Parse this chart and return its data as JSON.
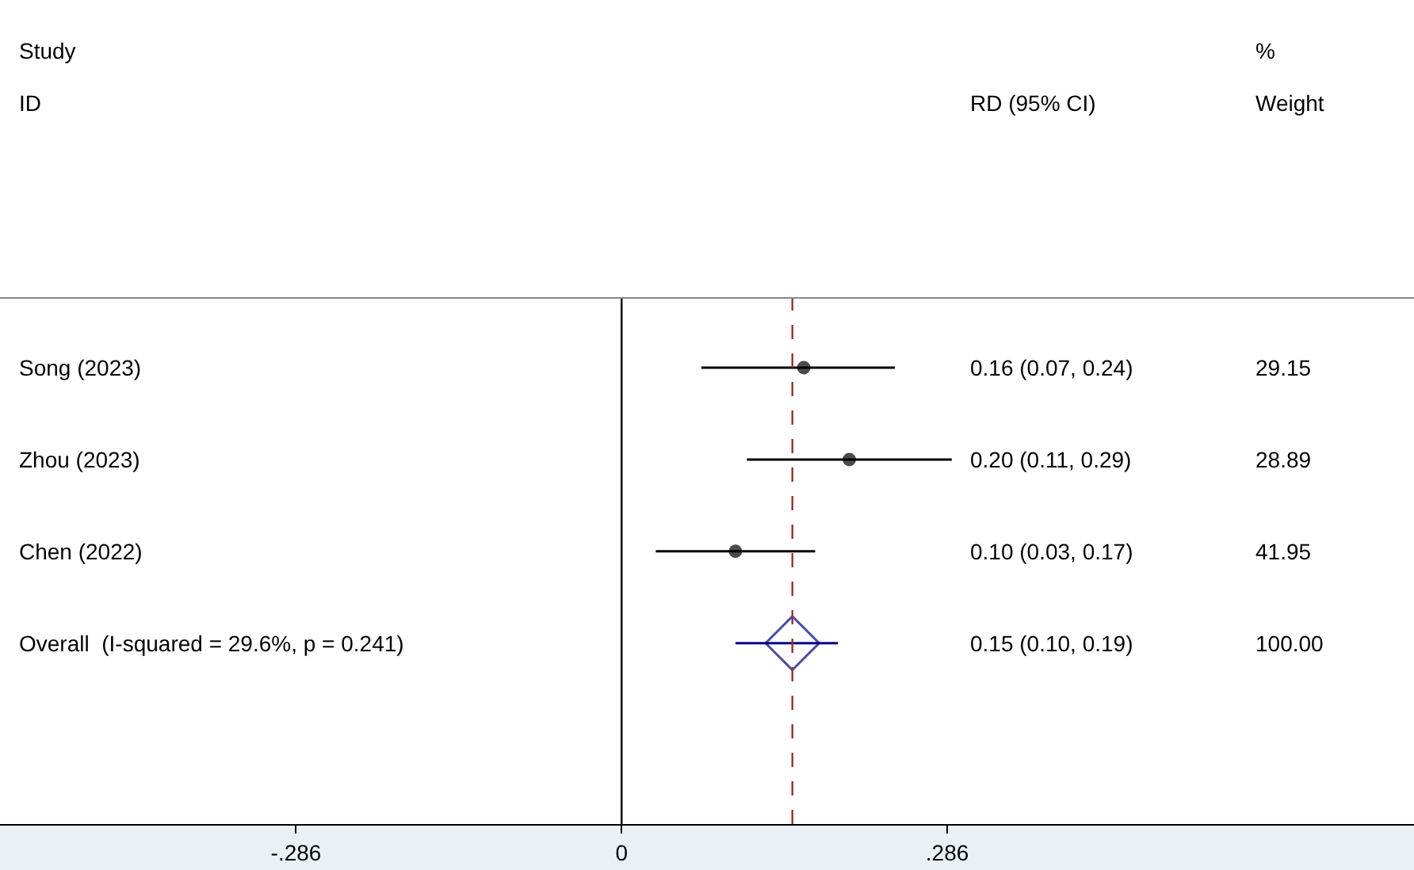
{
  "chart_data": {
    "type": "scatter",
    "orientation": "horizontal",
    "categories": [
      "Song (2023)",
      "Zhou (2023)",
      "Chen (2022)",
      "Overall  (I-squared = 29.6%, p = 0.241)"
    ],
    "series": [
      {
        "color": "#000000",
        "marker": "circle",
        "values": [
          0.16,
          0.2,
          0.1,
          null
        ],
        "errors": [
          [
            0.07,
            0.24
          ],
          [
            0.11,
            0.29
          ],
          [
            0.03,
            0.17
          ],
          null
        ]
      },
      {
        "color": "#000080",
        "marker": "diamond",
        "values": [
          null,
          null,
          null,
          0.15
        ],
        "errors": [
          null,
          null,
          null,
          [
            0.1,
            0.19
          ]
        ]
      }
    ],
    "xlim": [
      -0.546,
      0.696
    ],
    "xticks": [
      {
        "value": -0.286,
        "label": "-.286"
      },
      0,
      {
        "value": 0.286,
        "label": ".286"
      }
    ],
    "tick_labels": "x",
    "ref_lines": [
      {
        "axis": "x",
        "value": 0,
        "color": "#000000",
        "line_style": "solid"
      },
      {
        "axis": "x",
        "value": 0.15,
        "color": "#a0302a",
        "line_style": "dashed"
      }
    ],
    "annotations": [
      "Study",
      "ID",
      "RD (95% CI)",
      "%",
      "Weight",
      "0.16 (0.07, 0.24)",
      "0.20 (0.11, 0.29)",
      "0.10 (0.03, 0.17)",
      "0.15 (0.10, 0.19)",
      "29.15",
      "28.89",
      "41.95",
      "100.00"
    ]
  }
}
